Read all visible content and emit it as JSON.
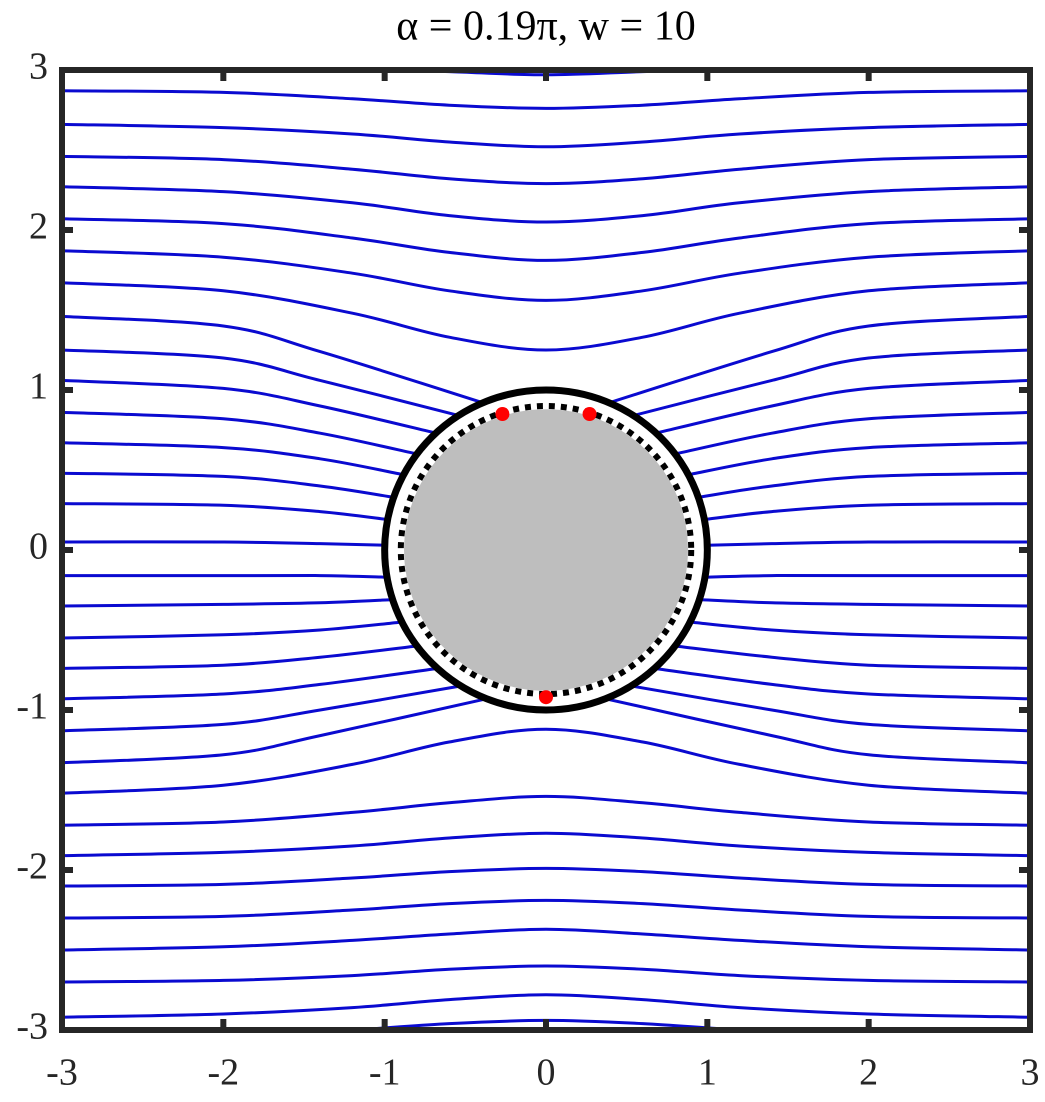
{
  "chart_data": {
    "type": "streamline",
    "title": "α = 0.19π, w = 10",
    "xlim": [
      -3,
      3
    ],
    "ylim": [
      -3,
      3
    ],
    "xticks": [
      -3,
      -2,
      -1,
      0,
      1,
      2,
      3
    ],
    "yticks": [
      -3,
      -2,
      -1,
      0,
      1,
      2,
      3
    ],
    "grid": false,
    "color": "#0a0ad0",
    "series": [
      {
        "x": [
          -3,
          -2,
          -1.2,
          -0.6,
          0,
          0.6,
          1.2,
          2,
          3
        ],
        "values": [
          3.05,
          3.04,
          3.01,
          2.99,
          2.97,
          2.99,
          3.01,
          3.04,
          3.05
        ]
      },
      {
        "x": [
          -3,
          -2,
          -1.2,
          -0.6,
          0,
          0.6,
          1.2,
          2,
          3
        ],
        "values": [
          2.87,
          2.86,
          2.82,
          2.78,
          2.76,
          2.78,
          2.82,
          2.86,
          2.87
        ]
      },
      {
        "x": [
          -3,
          -2,
          -1.2,
          -0.6,
          0,
          0.6,
          1.2,
          2,
          3
        ],
        "values": [
          2.66,
          2.64,
          2.6,
          2.55,
          2.52,
          2.55,
          2.6,
          2.64,
          2.66
        ]
      },
      {
        "x": [
          -3,
          -2,
          -1.2,
          -0.6,
          0,
          0.6,
          1.2,
          2,
          3
        ],
        "values": [
          2.46,
          2.44,
          2.38,
          2.32,
          2.29,
          2.32,
          2.38,
          2.44,
          2.46
        ]
      },
      {
        "x": [
          -3,
          -2,
          -1.2,
          -0.6,
          0,
          0.6,
          1.2,
          2,
          3
        ],
        "values": [
          2.27,
          2.24,
          2.17,
          2.09,
          2.05,
          2.09,
          2.17,
          2.24,
          2.27
        ]
      },
      {
        "x": [
          -3,
          -2,
          -1.2,
          -0.6,
          0,
          0.6,
          1.2,
          2,
          3
        ],
        "values": [
          2.07,
          2.04,
          1.95,
          1.86,
          1.81,
          1.86,
          1.95,
          2.04,
          2.07
        ]
      },
      {
        "x": [
          -3,
          -2,
          -1.2,
          -0.6,
          0,
          0.6,
          1.2,
          2,
          3
        ],
        "values": [
          1.87,
          1.83,
          1.73,
          1.62,
          1.56,
          1.62,
          1.73,
          1.83,
          1.87
        ]
      },
      {
        "x": [
          -3,
          -2,
          -1.2,
          -0.6,
          0,
          0.6,
          1.2,
          2,
          3
        ],
        "values": [
          1.67,
          1.62,
          1.48,
          1.33,
          1.25,
          1.33,
          1.48,
          1.62,
          1.67
        ]
      },
      {
        "x": [
          -3,
          -2,
          -1.2,
          -0.6,
          0,
          0.6,
          1.2,
          2,
          3
        ],
        "values": [
          -1.52,
          -1.47,
          -1.34,
          -1.2,
          -1.12,
          -1.2,
          -1.34,
          -1.47,
          -1.52
        ]
      },
      {
        "x": [
          -3,
          -2,
          -1.2,
          -0.6,
          0,
          0.6,
          1.2,
          2,
          3
        ],
        "values": [
          -1.72,
          -1.7,
          -1.64,
          -1.58,
          -1.54,
          -1.58,
          -1.64,
          -1.7,
          -1.72
        ]
      },
      {
        "x": [
          -3,
          -2,
          -1.2,
          -0.6,
          0,
          0.6,
          1.2,
          2,
          3
        ],
        "values": [
          -1.91,
          -1.89,
          -1.85,
          -1.8,
          -1.77,
          -1.8,
          -1.85,
          -1.89,
          -1.91
        ]
      },
      {
        "x": [
          -3,
          -2,
          -1.2,
          -0.6,
          0,
          0.6,
          1.2,
          2,
          3
        ],
        "values": [
          -2.1,
          -2.09,
          -2.05,
          -2.01,
          -1.99,
          -2.01,
          -2.05,
          -2.09,
          -2.1
        ]
      },
      {
        "x": [
          -3,
          -2,
          -1.2,
          -0.6,
          0,
          0.6,
          1.2,
          2,
          3
        ],
        "values": [
          -2.3,
          -2.29,
          -2.25,
          -2.21,
          -2.19,
          -2.21,
          -2.25,
          -2.29,
          -2.3
        ]
      },
      {
        "x": [
          -3,
          -2,
          -1.2,
          -0.6,
          0,
          0.6,
          1.2,
          2,
          3
        ],
        "values": [
          -2.5,
          -2.48,
          -2.44,
          -2.4,
          -2.37,
          -2.4,
          -2.44,
          -2.48,
          -2.5
        ]
      },
      {
        "x": [
          -3,
          -2,
          -1.2,
          -0.6,
          0,
          0.6,
          1.2,
          2,
          3
        ],
        "values": [
          -2.7,
          -2.69,
          -2.66,
          -2.62,
          -2.6,
          -2.62,
          -2.66,
          -2.69,
          -2.7
        ]
      },
      {
        "x": [
          -3,
          -2,
          -1.2,
          -0.6,
          0,
          0.6,
          1.2,
          2,
          3
        ],
        "values": [
          -2.92,
          -2.9,
          -2.86,
          -2.81,
          -2.78,
          -2.81,
          -2.86,
          -2.9,
          -2.92
        ]
      },
      {
        "x": [
          -3,
          -2,
          -1.2,
          -0.6,
          0,
          0.6,
          1.2,
          2,
          3
        ],
        "values": [
          -3.05,
          -3.04,
          -3,
          -2.96,
          -2.94,
          -2.96,
          -3,
          -3.04,
          -3.05
        ]
      },
      {
        "x": [
          -3,
          -2,
          -1.4,
          -0.39
        ],
        "values": [
          1.46,
          1.4,
          1.24,
          0.92
        ]
      },
      {
        "x": [
          -3,
          -2,
          -1.4,
          -0.54
        ],
        "values": [
          1.25,
          1.2,
          1.06,
          0.84
        ]
      },
      {
        "x": [
          -3,
          -2,
          -1.4,
          -0.68
        ],
        "values": [
          1.06,
          1.01,
          0.9,
          0.73
        ]
      },
      {
        "x": [
          -3,
          -2,
          -1.4,
          -0.8
        ],
        "values": [
          0.86,
          0.82,
          0.73,
          0.6
        ]
      },
      {
        "x": [
          -3,
          -2,
          -1.4,
          -0.88
        ],
        "values": [
          0.67,
          0.64,
          0.57,
          0.47
        ]
      },
      {
        "x": [
          -3,
          -2,
          -1.4,
          -0.95
        ],
        "values": [
          0.48,
          0.46,
          0.4,
          0.33
        ]
      },
      {
        "x": [
          -3,
          -2,
          -1.4,
          -0.98
        ],
        "values": [
          0.29,
          0.28,
          0.24,
          0.19
        ]
      },
      {
        "x": [
          -3,
          -2,
          -1.4,
          -1
        ],
        "values": [
          0.05,
          0.05,
          0.04,
          0.03
        ]
      },
      {
        "x": [
          -3,
          -2,
          -1.4,
          -0.98
        ],
        "values": [
          -0.16,
          -0.16,
          -0.16,
          -0.17
        ]
      },
      {
        "x": [
          -3,
          -2,
          -1.4,
          -0.95
        ],
        "values": [
          -0.35,
          -0.34,
          -0.33,
          -0.31
        ]
      },
      {
        "x": [
          -3,
          -2,
          -1.4,
          -0.89
        ],
        "values": [
          -0.55,
          -0.53,
          -0.5,
          -0.45
        ]
      },
      {
        "x": [
          -3,
          -2,
          -1.4,
          -0.8
        ],
        "values": [
          -0.74,
          -0.72,
          -0.67,
          -0.6
        ]
      },
      {
        "x": [
          -3,
          -2,
          -1.4,
          -0.67
        ],
        "values": [
          -0.93,
          -0.9,
          -0.84,
          -0.74
        ]
      },
      {
        "x": [
          -3,
          -2,
          -1.4,
          -0.53
        ],
        "values": [
          -1.13,
          -1.09,
          -1,
          -0.85
        ]
      },
      {
        "x": [
          -3,
          -2,
          -1.4,
          -0.37
        ],
        "values": [
          -1.33,
          -1.28,
          -1.16,
          -0.93
        ]
      },
      {
        "x": [
          0.39,
          1.4,
          2,
          3
        ],
        "values": [
          0.92,
          1.24,
          1.4,
          1.46
        ]
      },
      {
        "x": [
          0.54,
          1.4,
          2,
          3
        ],
        "values": [
          0.84,
          1.06,
          1.2,
          1.25
        ]
      },
      {
        "x": [
          0.68,
          1.4,
          2,
          3
        ],
        "values": [
          0.73,
          0.9,
          1.01,
          1.06
        ]
      },
      {
        "x": [
          0.8,
          1.4,
          2,
          3
        ],
        "values": [
          0.6,
          0.73,
          0.82,
          0.86
        ]
      },
      {
        "x": [
          0.88,
          1.4,
          2,
          3
        ],
        "values": [
          0.47,
          0.57,
          0.64,
          0.67
        ]
      },
      {
        "x": [
          0.95,
          1.4,
          2,
          3
        ],
        "values": [
          0.33,
          0.4,
          0.46,
          0.48
        ]
      },
      {
        "x": [
          0.98,
          1.4,
          2,
          3
        ],
        "values": [
          0.19,
          0.24,
          0.28,
          0.29
        ]
      },
      {
        "x": [
          1,
          1.4,
          2,
          3
        ],
        "values": [
          0.03,
          0.04,
          0.05,
          0.05
        ]
      },
      {
        "x": [
          0.98,
          1.4,
          2,
          3
        ],
        "values": [
          -0.17,
          -0.16,
          -0.16,
          -0.16
        ]
      },
      {
        "x": [
          0.95,
          1.4,
          2,
          3
        ],
        "values": [
          -0.31,
          -0.33,
          -0.34,
          -0.35
        ]
      },
      {
        "x": [
          0.89,
          1.4,
          2,
          3
        ],
        "values": [
          -0.45,
          -0.5,
          -0.53,
          -0.55
        ]
      },
      {
        "x": [
          0.8,
          1.4,
          2,
          3
        ],
        "values": [
          -0.6,
          -0.67,
          -0.72,
          -0.74
        ]
      },
      {
        "x": [
          0.67,
          1.4,
          2,
          3
        ],
        "values": [
          -0.74,
          -0.84,
          -0.9,
          -0.93
        ]
      },
      {
        "x": [
          0.53,
          1.4,
          2,
          3
        ],
        "values": [
          -0.85,
          -1,
          -1.09,
          -1.13
        ]
      },
      {
        "x": [
          0.37,
          1.4,
          2,
          3
        ],
        "values": [
          -0.93,
          -1.16,
          -1.28,
          -1.33
        ]
      }
    ],
    "circles": [
      {
        "radius": 0.88,
        "style": "fill",
        "color": "#bebebe"
      },
      {
        "radius": 0.9,
        "style": "dotted",
        "color": "#000000"
      },
      {
        "radius": 1,
        "style": "solid",
        "color": "#000000"
      }
    ],
    "points": {
      "x": [
        -0.27,
        0.27,
        0
      ],
      "y": [
        0.85,
        0.85,
        -0.92
      ],
      "color": "#ff0000"
    }
  }
}
